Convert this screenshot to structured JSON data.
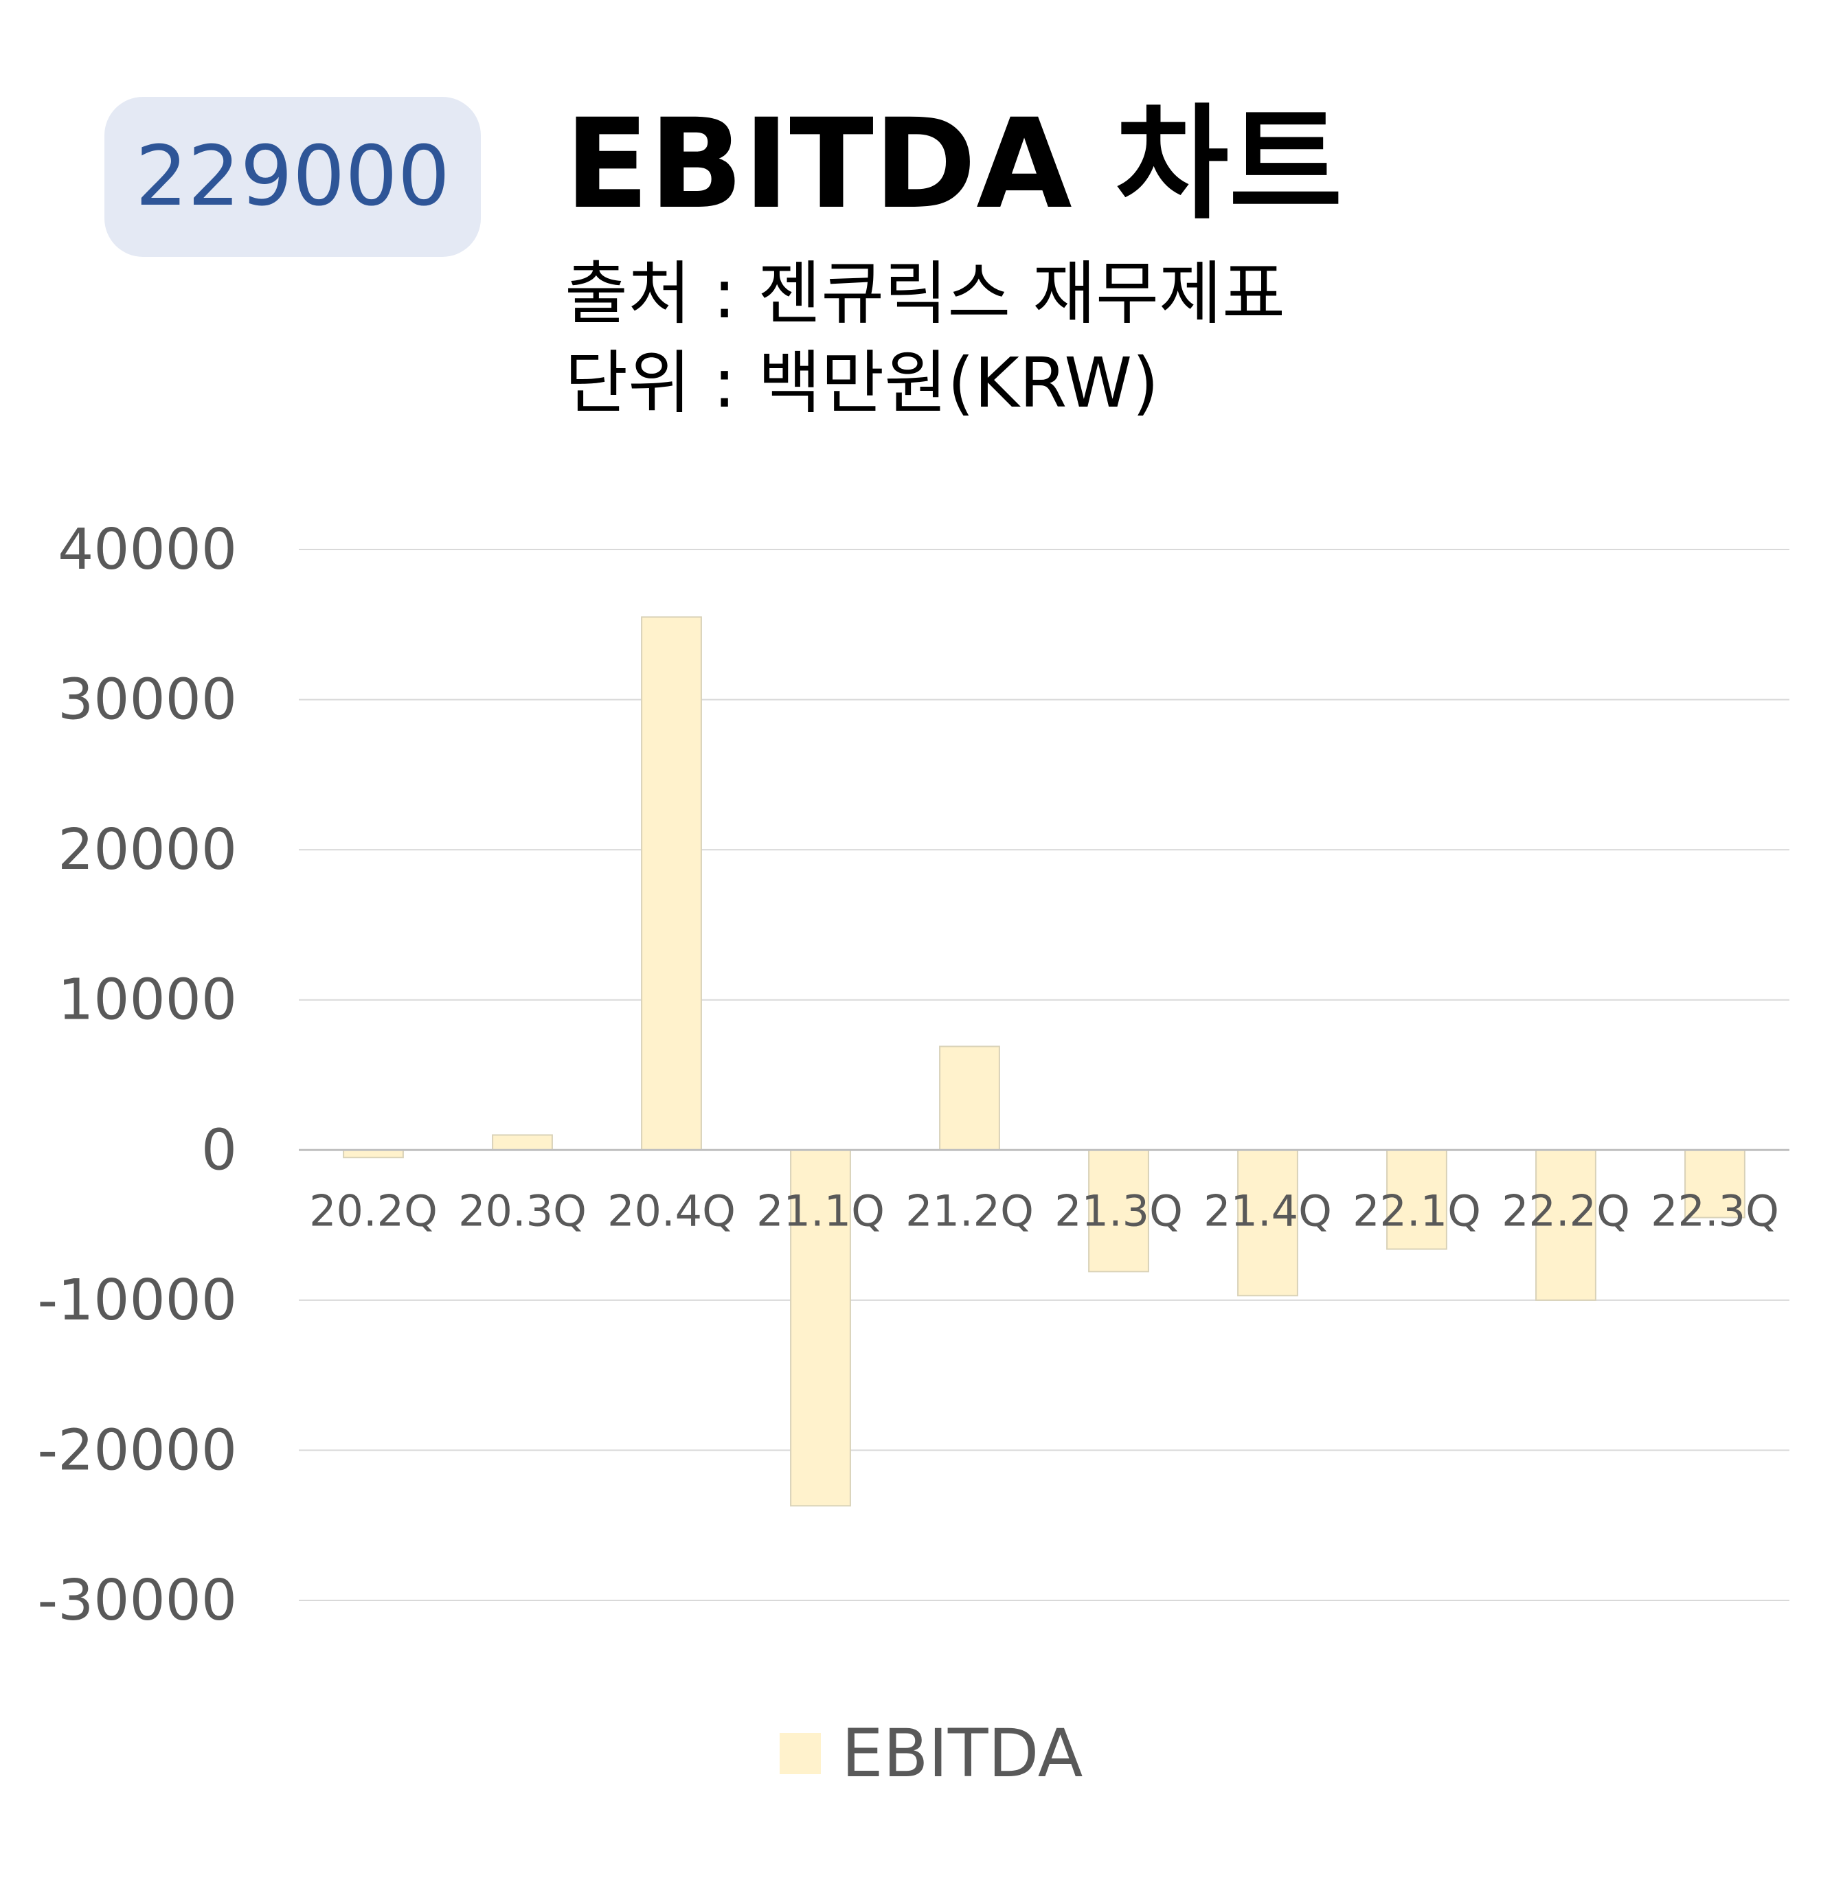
{
  "badge": {
    "code": "229000"
  },
  "header": {
    "title": "EBITDA 차트",
    "source": "출처 : 젠큐릭스 재무제표",
    "unit": "단위 : 백만원(KRW)"
  },
  "chart_data": {
    "type": "bar",
    "categories": [
      "20.2Q",
      "20.3Q",
      "20.4Q",
      "21.1Q",
      "21.2Q",
      "21.3Q",
      "21.4Q",
      "22.1Q",
      "22.2Q",
      "22.3Q"
    ],
    "series": [
      {
        "name": "EBITDA",
        "values": [
          -500,
          1000,
          35500,
          -23700,
          6900,
          -8100,
          -9700,
          -6600,
          -10000,
          -4500
        ]
      }
    ],
    "ylim": [
      -30000,
      40000
    ],
    "yticks": [
      40000,
      30000,
      20000,
      10000,
      0,
      -10000,
      -20000,
      -30000
    ],
    "grid": true,
    "legend_position": "bottom",
    "colors": {
      "bar": "#fff2cc",
      "bar_edge": "#d9d2b8",
      "grid": "#d9d9d9",
      "axis": "#bfbfbf"
    }
  }
}
